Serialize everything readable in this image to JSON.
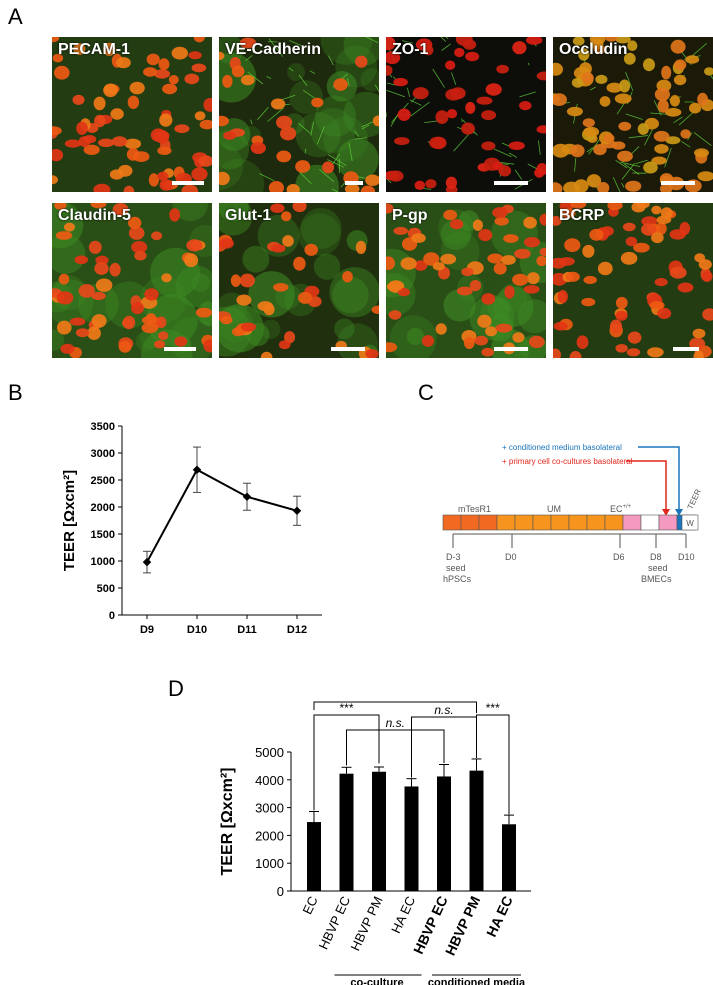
{
  "panels": {
    "a": "A",
    "b": "B",
    "c": "C",
    "d": "D"
  },
  "micrographs": [
    {
      "label": "PECAM-1",
      "style": "dense"
    },
    {
      "label": "VE-Cadherin",
      "style": "diffuse"
    },
    {
      "label": "ZO-1",
      "style": "junction"
    },
    {
      "label": "Occludin",
      "style": "junction-yellow"
    },
    {
      "label": "Claudin-5",
      "style": "green"
    },
    {
      "label": "Glut-1",
      "style": "sparse"
    },
    {
      "label": "P-gp",
      "style": "green"
    },
    {
      "label": "BCRP",
      "style": "dense"
    }
  ],
  "chart_data": [
    {
      "type": "line",
      "ylabel": "TEER [Ωxcm²]",
      "categories": [
        "D9",
        "D10",
        "D11",
        "D12"
      ],
      "values": [
        980,
        2690,
        2190,
        1930
      ],
      "errors": [
        200,
        420,
        250,
        270
      ],
      "ylim": [
        0,
        3500
      ],
      "yticks": [
        0,
        500,
        1000,
        1500,
        2000,
        2500,
        3000,
        3500
      ]
    },
    {
      "type": "bar",
      "ylabel": "TEER [Ωxcm²]",
      "categories": [
        "EC",
        "HBVP EC",
        "HBVP PM",
        "HA EC",
        "HBVP EC",
        "HBVP PM",
        "HA EC"
      ],
      "bold_categories": [
        false,
        false,
        false,
        false,
        true,
        true,
        true
      ],
      "values": [
        2480,
        4220,
        4290,
        3760,
        4120,
        4330,
        2400
      ],
      "errors": [
        380,
        230,
        170,
        280,
        430,
        420,
        330
      ],
      "ylim": [
        0,
        5000
      ],
      "yticks": [
        0,
        1000,
        2000,
        3000,
        4000,
        5000
      ],
      "groups": [
        "co-culture",
        "conditioned media"
      ],
      "significance": [
        "***",
        "**",
        "n.s.",
        "n.s.",
        "***"
      ]
    }
  ],
  "timeline": {
    "conditioned_medium": "+ conditioned medium basolateral",
    "primary_cell": "+ primary cell co-cultures basolateral",
    "mtesr1": "mTesR1",
    "um": "UM",
    "ec": "EC",
    "ec_sup": "+/+",
    "teer": "TEER",
    "w": "W",
    "d_minus3": "D-3",
    "seed1": "seed",
    "hpscs": "hPSCs",
    "d0": "D0",
    "d6": "D6",
    "d8": "D8",
    "seed2": "seed",
    "bmecs": "BMECs",
    "d10": "D10",
    "colors": {
      "mtesr1": "#f26a21",
      "um": "#f7941d",
      "ec": "#f49ac1",
      "blue": "#1a75bc",
      "red": "#e2261c"
    }
  }
}
